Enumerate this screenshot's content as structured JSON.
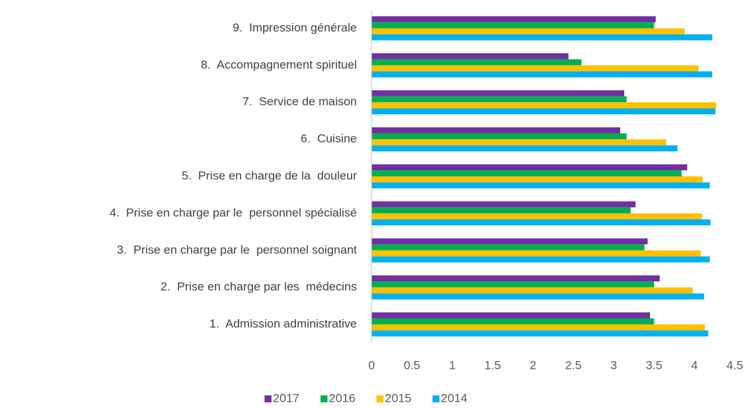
{
  "chart_data": {
    "type": "hbar",
    "categories": [
      "1.  Admission administrative",
      "2.  Prise en charge par les  médecins",
      "3.  Prise en charge par le  personnel soignant",
      "4.  Prise en charge par le  personnel spécialisé",
      "5.  Prise en charge de la  douleur",
      "6.  Cuisine",
      "7.  Service de maison",
      "8.  Accompagnement spirituel",
      "9.  Impression générale"
    ],
    "series": [
      {
        "name": "2017",
        "color": "#7030a0",
        "values": [
          3.45,
          3.57,
          3.42,
          3.27,
          3.91,
          3.08,
          3.13,
          2.44,
          3.52
        ]
      },
      {
        "name": "2016",
        "color": "#00b050",
        "values": [
          3.5,
          3.5,
          3.38,
          3.21,
          3.84,
          3.16,
          3.16,
          2.6,
          3.5
        ]
      },
      {
        "name": "2015",
        "color": "#ffc000",
        "values": [
          4.13,
          3.98,
          4.08,
          4.09,
          4.1,
          3.65,
          4.27,
          4.05,
          3.88
        ]
      },
      {
        "name": "2014",
        "color": "#00b0f0",
        "values": [
          4.17,
          4.12,
          4.19,
          4.2,
          4.19,
          3.79,
          4.26,
          4.22,
          4.22
        ]
      }
    ],
    "xlim": [
      0,
      4.5
    ],
    "xticks": [
      0,
      0.5,
      1,
      1.5,
      2,
      2.5,
      3,
      3.5,
      4,
      4.5
    ],
    "legend": "bottom"
  }
}
